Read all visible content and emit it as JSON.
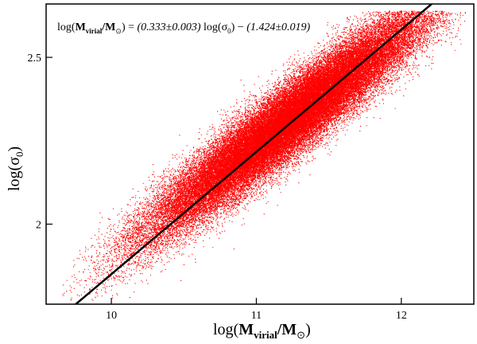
{
  "chart_data": {
    "type": "scatter",
    "title": "",
    "xlabel": {
      "prefix": "log(",
      "main": "M",
      "sub": "virial",
      "mid": "/M",
      "sub2": "⊙",
      "suffix": ")"
    },
    "ylabel": {
      "prefix": "log(σ",
      "sub": "0",
      "suffix": ")"
    },
    "xlim": [
      9.55,
      12.5
    ],
    "ylim": [
      1.76,
      2.66
    ],
    "xticks": [
      {
        "value": 10,
        "label": "10"
      },
      {
        "value": 11,
        "label": "11"
      },
      {
        "value": 12,
        "label": "12"
      }
    ],
    "yticks": [
      {
        "value": 2.0,
        "label": "2"
      },
      {
        "value": 2.5,
        "label": "2.5"
      }
    ],
    "annotation": {
      "a": "log(",
      "b": "M",
      "c": "virial",
      "d": "/M",
      "e": "⊙",
      "f": ") = ",
      "g": "(0.333±0.003)",
      "h": " log(σ",
      "i": "0",
      "j": ") − ",
      "k": "(1.424±0.019)"
    },
    "fit_line": {
      "slope": 0.333,
      "intercept": -1.424,
      "color": "#000000"
    },
    "scatter": {
      "color": "#ff0000",
      "count": 60000,
      "center_x": 11.22,
      "center_y": 2.31,
      "sx": 0.48,
      "sy_residual": 0.055,
      "x_min": 9.65,
      "x_max": 12.45,
      "y_min": 1.77,
      "y_max": 2.64
    }
  }
}
